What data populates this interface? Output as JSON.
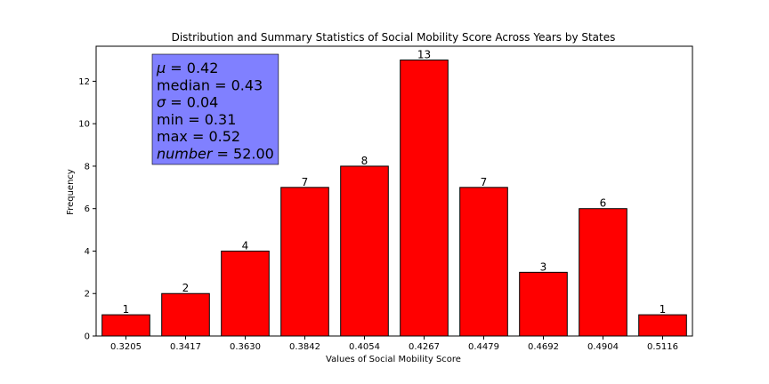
{
  "chart_data": {
    "type": "bar",
    "title": "Distribution and Summary Statistics of Social Mobility Score Across Years by States",
    "xlabel": "Values of Social Mobility Score",
    "ylabel": "Frequency",
    "categories": [
      "0.3205",
      "0.3417",
      "0.3630",
      "0.3842",
      "0.4054",
      "0.4267",
      "0.4479",
      "0.4692",
      "0.4904",
      "0.5116"
    ],
    "values": [
      1,
      2,
      4,
      7,
      8,
      13,
      7,
      3,
      6,
      1
    ],
    "ylim": [
      0,
      13.65
    ],
    "yticks": [
      0,
      2,
      4,
      6,
      8,
      10,
      12
    ],
    "bar_color": "#ff0000",
    "bar_edge_color": "#000000",
    "grid": false,
    "legend": "none",
    "stats_box": {
      "background": "#8080ff",
      "placement": "top-left",
      "lines": [
        {
          "key": "μ",
          "italic": true,
          "value": "0.42"
        },
        {
          "key": "median",
          "italic": false,
          "value": "0.43"
        },
        {
          "key": "σ",
          "italic": true,
          "value": "0.04"
        },
        {
          "key": "min",
          "italic": false,
          "value": "0.31"
        },
        {
          "key": "max",
          "italic": false,
          "value": "0.52"
        },
        {
          "key": "number",
          "italic": true,
          "value": "52.00"
        }
      ]
    }
  }
}
